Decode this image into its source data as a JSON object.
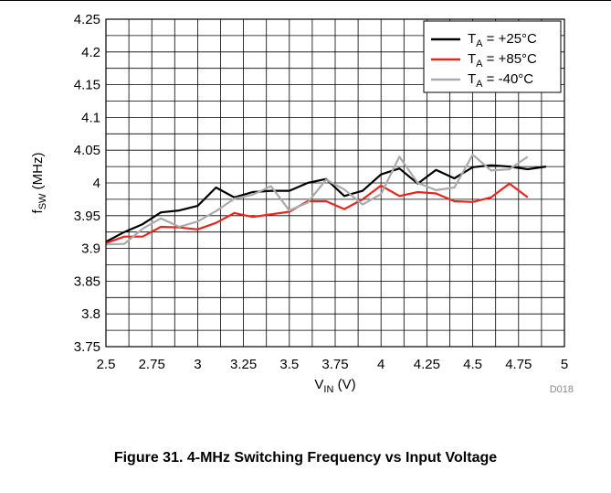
{
  "caption": "Figure 31. 4-MHz Switching Frequency vs Input Voltage",
  "figure_code": "D018",
  "chart_data": {
    "type": "line",
    "title": "",
    "xlabel": {
      "main": "V",
      "sub": "IN",
      "rest": " (V)"
    },
    "ylabel": {
      "main": "f",
      "sub": "SW",
      "rest": " (MHz)"
    },
    "xlim": [
      2.5,
      5
    ],
    "ylim": [
      3.75,
      4.25
    ],
    "x_ticks": [
      "2.5",
      "2.75",
      "3",
      "3.25",
      "3.5",
      "3.75",
      "4",
      "4.25",
      "4.5",
      "4.75",
      "5"
    ],
    "y_ticks": [
      "3.75",
      "3.8",
      "3.85",
      "3.9",
      "3.95",
      "4",
      "4.05",
      "4.1",
      "4.15",
      "4.2",
      "4.25"
    ],
    "grid": true,
    "legend_position": "top-right",
    "series": [
      {
        "name": {
          "main": "T",
          "sub": "A",
          "rest": " = +25°C"
        },
        "color": "#000000",
        "points": [
          [
            2.5,
            3.91
          ],
          [
            2.6,
            3.925
          ],
          [
            2.7,
            3.937
          ],
          [
            2.8,
            3.955
          ],
          [
            2.9,
            3.958
          ],
          [
            3.0,
            3.965
          ],
          [
            3.1,
            3.993
          ],
          [
            3.2,
            3.978
          ],
          [
            3.3,
            3.986
          ],
          [
            3.4,
            3.988
          ],
          [
            3.5,
            3.988
          ],
          [
            3.6,
            4.0
          ],
          [
            3.7,
            4.006
          ],
          [
            3.8,
            3.98
          ],
          [
            3.9,
            3.988
          ],
          [
            4.0,
            4.013
          ],
          [
            4.1,
            4.022
          ],
          [
            4.2,
            3.999
          ],
          [
            4.3,
            4.02
          ],
          [
            4.4,
            4.007
          ],
          [
            4.5,
            4.024
          ],
          [
            4.6,
            4.027
          ],
          [
            4.7,
            4.025
          ],
          [
            4.8,
            4.021
          ],
          [
            4.9,
            4.025
          ]
        ]
      },
      {
        "name": {
          "main": "T",
          "sub": "A",
          "rest": " = +85°C"
        },
        "color": "#e8261e",
        "points": [
          [
            2.5,
            3.908
          ],
          [
            2.6,
            3.918
          ],
          [
            2.7,
            3.918
          ],
          [
            2.8,
            3.933
          ],
          [
            2.9,
            3.932
          ],
          [
            3.0,
            3.929
          ],
          [
            3.1,
            3.939
          ],
          [
            3.2,
            3.954
          ],
          [
            3.3,
            3.948
          ],
          [
            3.4,
            3.952
          ],
          [
            3.5,
            3.956
          ],
          [
            3.6,
            3.972
          ],
          [
            3.7,
            3.972
          ],
          [
            3.8,
            3.96
          ],
          [
            3.9,
            3.975
          ],
          [
            4.0,
            3.996
          ],
          [
            4.1,
            3.98
          ],
          [
            4.2,
            3.986
          ],
          [
            4.3,
            3.984
          ],
          [
            4.4,
            3.972
          ],
          [
            4.5,
            3.971
          ],
          [
            4.6,
            3.978
          ],
          [
            4.7,
            3.999
          ],
          [
            4.8,
            3.978
          ]
        ]
      },
      {
        "name": {
          "main": "T",
          "sub": "A",
          "rest": " = -40°C"
        },
        "color": "#aaaaaa",
        "points": [
          [
            2.5,
            3.906
          ],
          [
            2.6,
            3.907
          ],
          [
            2.7,
            3.93
          ],
          [
            2.8,
            3.946
          ],
          [
            2.9,
            3.933
          ],
          [
            3.0,
            3.941
          ],
          [
            3.1,
            3.957
          ],
          [
            3.2,
            3.976
          ],
          [
            3.3,
            3.982
          ],
          [
            3.4,
            3.995
          ],
          [
            3.5,
            3.958
          ],
          [
            3.6,
            3.97
          ],
          [
            3.7,
            4.005
          ],
          [
            3.8,
            3.99
          ],
          [
            3.9,
            3.967
          ],
          [
            4.0,
            3.983
          ],
          [
            4.1,
            4.04
          ],
          [
            4.2,
            4.0
          ],
          [
            4.3,
            3.989
          ],
          [
            4.4,
            3.993
          ],
          [
            4.5,
            4.043
          ],
          [
            4.6,
            4.019
          ],
          [
            4.7,
            4.021
          ],
          [
            4.8,
            4.04
          ]
        ]
      }
    ]
  }
}
